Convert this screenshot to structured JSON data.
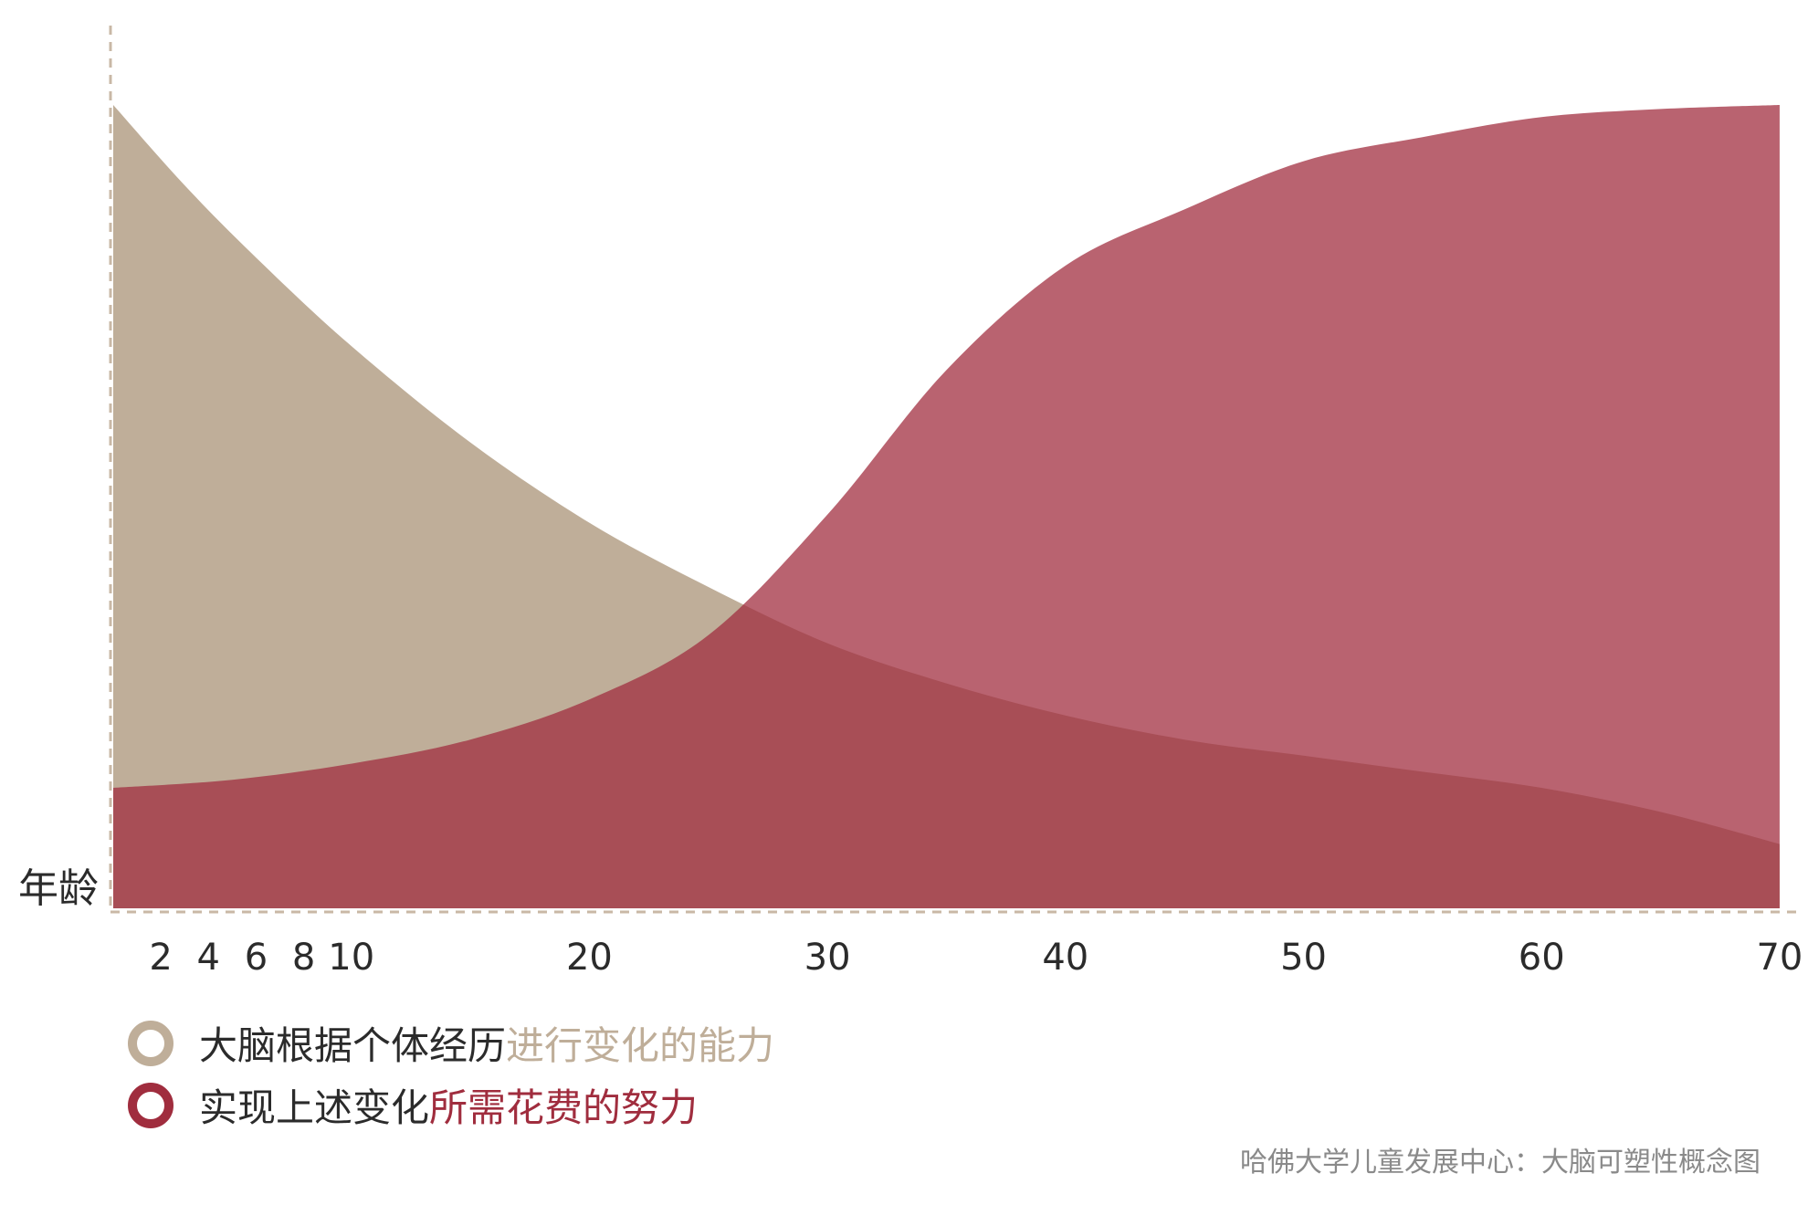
{
  "chart_data": {
    "type": "area",
    "x_axis_label": "年龄",
    "x_ticks": [
      2,
      4,
      6,
      8,
      10,
      20,
      30,
      40,
      50,
      60,
      70
    ],
    "xlim": [
      0,
      71
    ],
    "grid": false,
    "legend_placement": "bottom-left",
    "series": [
      {
        "name": "大脑根据个体经历进行变化的能力",
        "color": "#bfae99",
        "x": [
          0,
          3,
          6,
          10,
          15,
          20,
          25,
          30,
          35,
          40,
          45,
          50,
          55,
          60,
          65,
          70
        ],
        "values": [
          1.0,
          0.9,
          0.81,
          0.7,
          0.58,
          0.48,
          0.4,
          0.33,
          0.28,
          0.24,
          0.21,
          0.19,
          0.17,
          0.15,
          0.12,
          0.08
        ]
      },
      {
        "name": "实现上述变化所需花费的努力",
        "color": "#a02d3e",
        "x": [
          0,
          5,
          10,
          15,
          20,
          25,
          30,
          35,
          40,
          45,
          50,
          55,
          60,
          65,
          70
        ],
        "values": [
          0.15,
          0.16,
          0.18,
          0.21,
          0.26,
          0.34,
          0.49,
          0.67,
          0.8,
          0.87,
          0.93,
          0.96,
          0.985,
          0.995,
          1.0
        ]
      }
    ]
  },
  "legend": {
    "items": [
      {
        "prefix": "大脑根据个体经历",
        "highlight": "进行变化的能力",
        "color": "#bfae99"
      },
      {
        "prefix": "实现上述变化",
        "highlight": "所需花费的努力",
        "color": "#a02d3e"
      }
    ]
  },
  "source_note": "哈佛大学儿童发展中心：大脑可塑性概念图"
}
